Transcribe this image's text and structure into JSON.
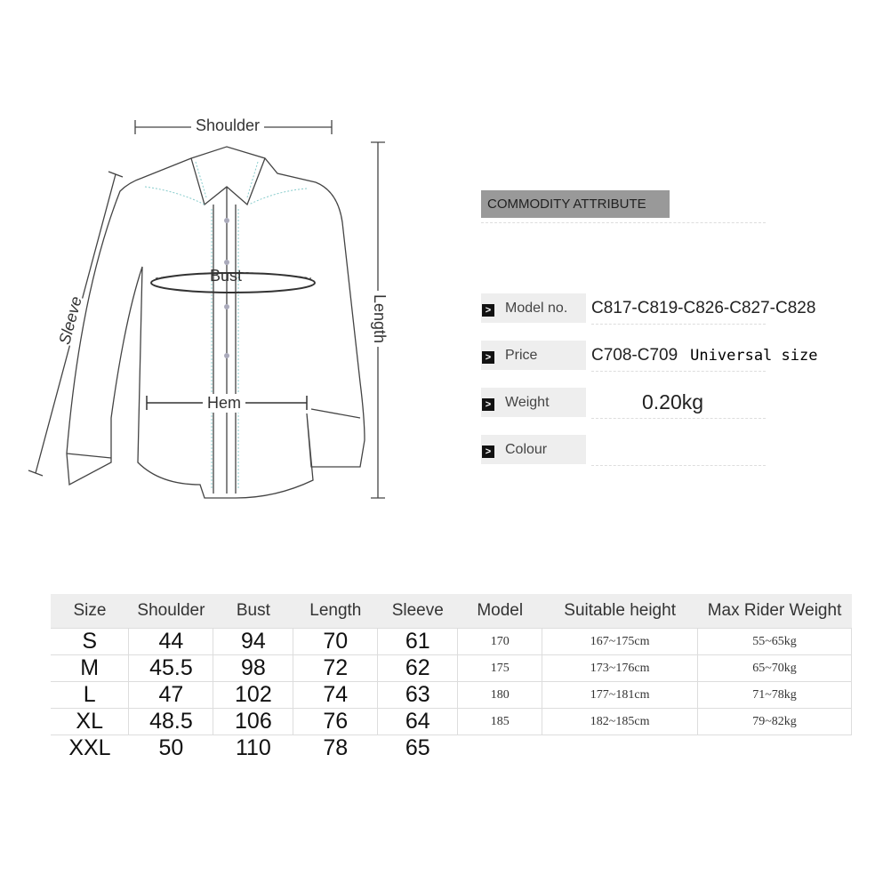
{
  "diagram": {
    "shoulder": "Shoulder",
    "bust": "Bust",
    "hem": "Hem",
    "sleeve": "Sleeve",
    "length": "Length"
  },
  "attributes": {
    "title": "COMMODITY ATTRIBUTE",
    "rows": [
      {
        "label": "Model no.",
        "value": "C817-C819-C826-C827-C828"
      },
      {
        "label": "Price",
        "value": "C708-C709",
        "extra": "Universal size"
      },
      {
        "label": "Weight",
        "value": "0.20kg"
      },
      {
        "label": "Colour",
        "value": ""
      }
    ]
  },
  "size_table": {
    "headers": [
      "Size",
      "Shoulder",
      "Bust",
      "Length",
      "Sleeve",
      "Model",
      "Suitable height",
      "Max Rider Weight"
    ],
    "rows": [
      [
        "S",
        "44",
        "94",
        "70",
        "61",
        "170",
        "167~175cm",
        "55~65kg"
      ],
      [
        "M",
        "45.5",
        "98",
        "72",
        "62",
        "175",
        "173~176cm",
        "65~70kg"
      ],
      [
        "L",
        "47",
        "102",
        "74",
        "63",
        "180",
        "177~181cm",
        "71~78kg"
      ],
      [
        "XL",
        "48.5",
        "106",
        "76",
        "64",
        "185",
        "182~185cm",
        "79~82kg"
      ],
      [
        "XXL",
        "50",
        "110",
        "78",
        "65",
        "",
        "",
        ""
      ]
    ]
  }
}
